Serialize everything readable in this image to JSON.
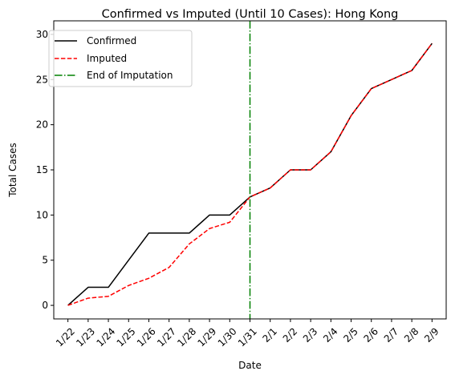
{
  "chart_data": {
    "type": "line",
    "title": "Confirmed vs Imputed (Until 10 Cases): Hong Kong",
    "xlabel": "Date",
    "ylabel": "Total Cases",
    "categories": [
      "1/22",
      "1/23",
      "1/24",
      "1/25",
      "1/26",
      "1/27",
      "1/28",
      "1/29",
      "1/30",
      "1/31",
      "2/1",
      "2/2",
      "2/3",
      "2/4",
      "2/5",
      "2/6",
      "2/7",
      "2/8",
      "2/9"
    ],
    "ylim": [
      -1.5,
      31.5
    ],
    "yticks": [
      0,
      5,
      10,
      15,
      20,
      25,
      30
    ],
    "grid": false,
    "legend_position": "top-left",
    "series": [
      {
        "name": "Confirmed",
        "color": "#000000",
        "style": "solid",
        "values": [
          0,
          2,
          2,
          5,
          8,
          8,
          8,
          10,
          10,
          12,
          13,
          15,
          15,
          17,
          21,
          24,
          25,
          26,
          29
        ]
      },
      {
        "name": "Imputed",
        "color": "#ff0000",
        "style": "dashed",
        "values": [
          0,
          0.8,
          1.0,
          2.2,
          3.0,
          4.2,
          6.8,
          8.5,
          9.2,
          12,
          13,
          15,
          15,
          17,
          21,
          24,
          25,
          26,
          29
        ]
      }
    ],
    "vline": {
      "name": "End of Imputation",
      "x": "1/31",
      "color": "#008000",
      "style": "dashdot"
    }
  }
}
